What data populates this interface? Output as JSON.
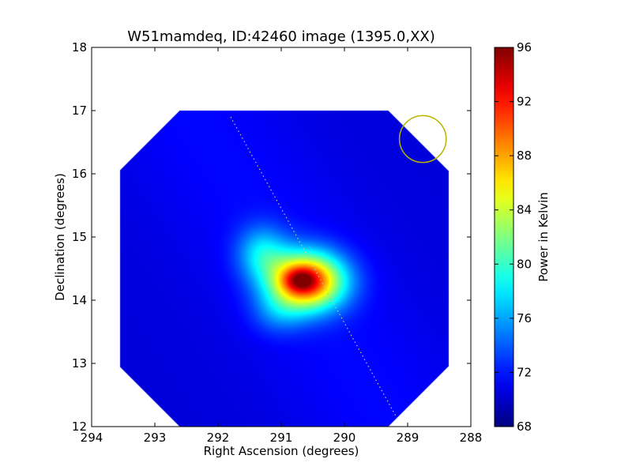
{
  "figure": {
    "title": "W51mamdeq, ID:42460 image (1395.0,XX)"
  },
  "chart_data": {
    "type": "heatmap",
    "title": "W51mamdeq, ID:42460 image (1395.0,XX)",
    "xlabel": "Right Ascension (degrees)",
    "ylabel": "Declination (degrees)",
    "xlim": [
      294,
      288
    ],
    "ylim": [
      12,
      18
    ],
    "x_ticks": [
      "294",
      "293",
      "292",
      "291",
      "290",
      "289",
      "288"
    ],
    "y_ticks": [
      "12",
      "13",
      "14",
      "15",
      "16",
      "17",
      "18"
    ],
    "x_inverted": true,
    "colormap": "jet",
    "colorbar": {
      "label": "Power in Kelvin",
      "range": [
        68,
        96
      ],
      "ticks": [
        "68",
        "72",
        "76",
        "80",
        "84",
        "88",
        "92",
        "96"
      ]
    },
    "image_extent": {
      "ra": [
        293.55,
        288.35
      ],
      "dec": [
        12.0,
        17.0
      ]
    },
    "background_level": 70.5,
    "peak": {
      "ra": 290.7,
      "dec": 14.3,
      "value": 96
    },
    "components": [
      {
        "ra": 290.6,
        "dec": 14.3,
        "amplitude": 20.5,
        "sigma_ra": 0.42,
        "sigma_dec": 0.32
      },
      {
        "ra": 290.7,
        "dec": 14.32,
        "amplitude": 6.0,
        "sigma_ra": 0.18,
        "sigma_dec": 0.13
      },
      {
        "ra": 291.3,
        "dec": 14.75,
        "amplitude": 6.0,
        "sigma_ra": 0.28,
        "sigma_dec": 0.3
      },
      {
        "ra": 291.05,
        "dec": 13.8,
        "amplitude": 3.0,
        "sigma_ra": 0.3,
        "sigma_dec": 0.25
      }
    ],
    "galactic_plane_line": {
      "start": {
        "ra": 291.8,
        "dec": 16.9
      },
      "end": {
        "ra": 289.15,
        "dec": 12.1
      },
      "style": "dotted",
      "color": "#c8c8a0"
    },
    "beam_circle": {
      "center": {
        "ra": 288.76,
        "dec": 16.55
      },
      "radius_deg": 0.37,
      "color": "#b7b400"
    }
  }
}
